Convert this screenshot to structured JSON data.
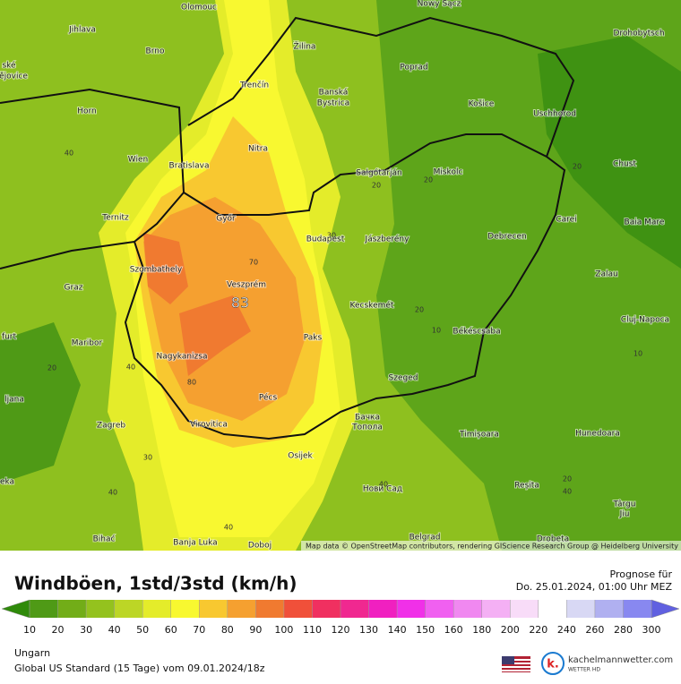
{
  "map": {
    "attribution": "Map data © OpenStreetMap contributors, rendering GIScience Research Group @ Heidelberg University",
    "max_label": "83",
    "cities": [
      "Olomouc",
      "Nowy Sącz",
      "Jihlava",
      "Žilina",
      "Drohobytsch",
      "Brno",
      "Poprad",
      "ské",
      "ějovice",
      "Trenčín",
      "Banská",
      "Bystrica",
      "Košice",
      "Uschhorod",
      "Horn",
      "Nitra",
      "Wien",
      "Bratislava",
      "Salgótarján",
      "Miskolc",
      "Chust",
      "Ternitz",
      "Győr",
      "Carei",
      "Budapest",
      "Jászberény",
      "Debrecen",
      "Baia Mare",
      "Szombathely",
      "Veszprém",
      "Zalau",
      "Graz",
      "Kecskemét",
      "Cluj-Napoca",
      "Békéscsaba",
      "furt",
      "Paks",
      "Maribor",
      "Nagykanizsa",
      "ljana",
      "Szeged",
      "Pécs",
      "Бачка",
      "Топола",
      "Zagreb",
      "Virovitica",
      "Timișoara",
      "Hunedoara",
      "Osijek",
      "eka",
      "Reșita",
      "Нови Сад",
      "Târgu",
      "Jiu",
      "Bihać",
      "Banja Luka",
      "Doboj",
      "Belgrad",
      "Drobeta"
    ],
    "contour_labels": [
      40,
      20,
      20,
      20,
      70,
      30,
      20,
      10,
      10,
      20,
      40,
      80,
      30,
      40,
      40,
      20,
      40,
      40
    ]
  },
  "legend": {
    "title": "Windböen, 1std/3std (km/h)",
    "forecast_label": "Prognose für",
    "forecast_time": "Do. 25.01.2024, 01:00 Uhr MEZ",
    "ticks": [
      10,
      20,
      30,
      40,
      50,
      60,
      70,
      80,
      90,
      100,
      110,
      120,
      130,
      140,
      150,
      160,
      180,
      200,
      220,
      240,
      260,
      280,
      300
    ],
    "colors": [
      "#4f9a16",
      "#72ad18",
      "#94c21e",
      "#bcd626",
      "#e4ec2a",
      "#f8f830",
      "#f8c830",
      "#f5a030",
      "#f07a30",
      "#f0503a",
      "#f03060",
      "#f02890",
      "#f020c0",
      "#f030e8",
      "#f060f0",
      "#f088f0",
      "#f4b0f4",
      "#f8dcf8",
      "#ffffff",
      "#d8d8f4",
      "#b0b0f0",
      "#8888f0"
    ],
    "under_color": "#2f8a0a",
    "over_color": "#6060e0"
  },
  "footer": {
    "region": "Ungarn",
    "model": "Global US Standard (15 Tage) vom 09.01.2024/18z",
    "site": "kachelmannwetter.com",
    "brand": "WETTER HD"
  }
}
